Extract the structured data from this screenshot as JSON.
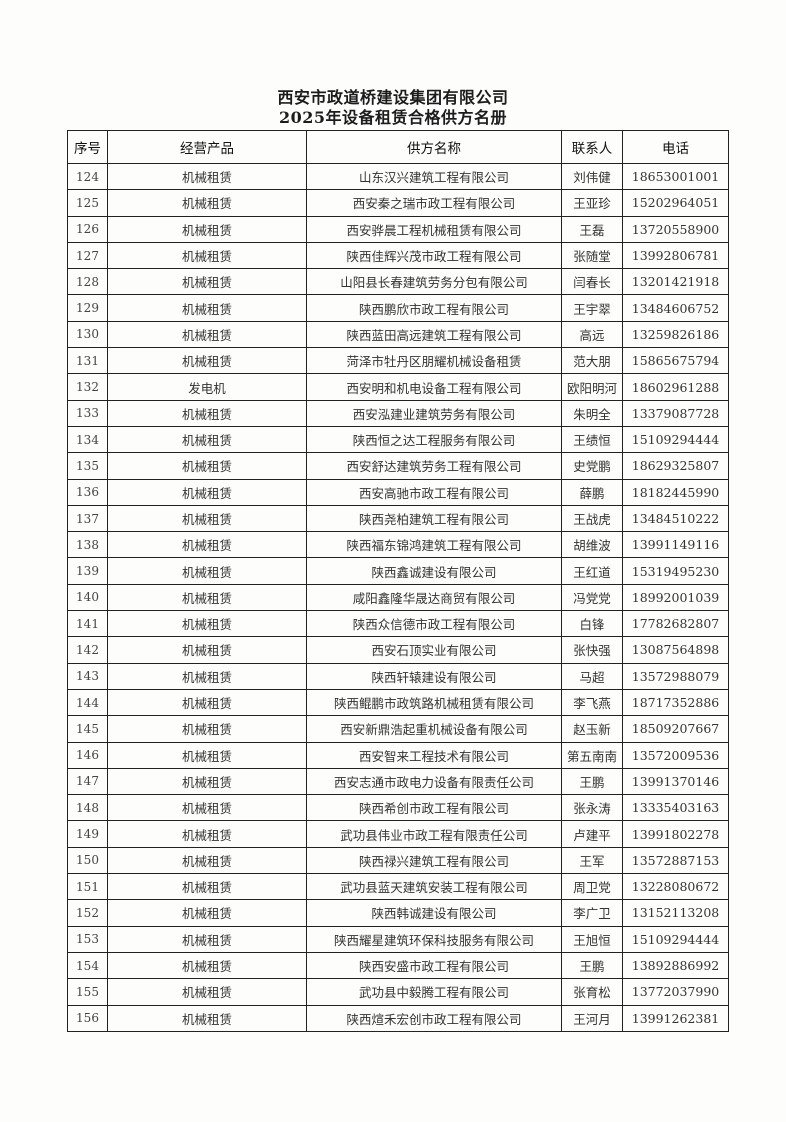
{
  "title_line1": "西安市政道桥建设集团有限公司",
  "title_line2": "2025年设备租赁合格供方名册",
  "columns": [
    "序号",
    "经营产品",
    "供方名称",
    "联系人",
    "电话"
  ],
  "rows": [
    [
      "124",
      "机械租赁",
      "山东汉兴建筑工程有限公司",
      "刘伟健",
      "18653001001"
    ],
    [
      "125",
      "机械租赁",
      "西安秦之瑞市政工程有限公司",
      "王亚珍",
      "15202964051"
    ],
    [
      "126",
      "机械租赁",
      "西安骅晨工程机械租赁有限公司",
      "王磊",
      "13720558900"
    ],
    [
      "127",
      "机械租赁",
      "陕西佳辉兴茂市政工程有限公司",
      "张随堂",
      "13992806781"
    ],
    [
      "128",
      "机械租赁",
      "山阳县长春建筑劳务分包有限公司",
      "闫春长",
      "13201421918"
    ],
    [
      "129",
      "机械租赁",
      "陕西鹏欣市政工程有限公司",
      "王宇翠",
      "13484606752"
    ],
    [
      "130",
      "机械租赁",
      "陕西蓝田高远建筑工程有限公司",
      "高远",
      "13259826186"
    ],
    [
      "131",
      "机械租赁",
      "菏泽市牡丹区朋耀机械设备租赁",
      "范大朋",
      "15865675794"
    ],
    [
      "132",
      "发电机",
      "西安明和机电设备工程有限公司",
      "欧阳明河",
      "18602961288"
    ],
    [
      "133",
      "机械租赁",
      "西安泓建业建筑劳务有限公司",
      "朱明全",
      "13379087728"
    ],
    [
      "134",
      "机械租赁",
      "陕西恒之达工程服务有限公司",
      "王绩恒",
      "15109294444"
    ],
    [
      "135",
      "机械租赁",
      "西安舒达建筑劳务工程有限公司",
      "史党鹏",
      "18629325807"
    ],
    [
      "136",
      "机械租赁",
      "西安高驰市政工程有限公司",
      "薛鹏",
      "18182445990"
    ],
    [
      "137",
      "机械租赁",
      "陕西尧柏建筑工程有限公司",
      "王战虎",
      "13484510222"
    ],
    [
      "138",
      "机械租赁",
      "陕西福东锦鸿建筑工程有限公司",
      "胡维波",
      "13991149116"
    ],
    [
      "139",
      "机械租赁",
      "陕西鑫诚建设有限公司",
      "王红道",
      "15319495230"
    ],
    [
      "140",
      "机械租赁",
      "咸阳鑫隆华晟达商贸有限公司",
      "冯党党",
      "18992001039"
    ],
    [
      "141",
      "机械租赁",
      "陕西众信德市政工程有限公司",
      "白锋",
      "17782682807"
    ],
    [
      "142",
      "机械租赁",
      "西安石顶实业有限公司",
      "张快强",
      "13087564898"
    ],
    [
      "143",
      "机械租赁",
      "陕西轩辕建设有限公司",
      "马超",
      "13572988079"
    ],
    [
      "144",
      "机械租赁",
      "陕西鲲鹏市政筑路机械租赁有限公司",
      "李飞燕",
      "18717352886"
    ],
    [
      "145",
      "机械租赁",
      "西安新鼎浩起重机械设备有限公司",
      "赵玉新",
      "18509207667"
    ],
    [
      "146",
      "机械租赁",
      "西安智来工程技术有限公司",
      "第五南南",
      "13572009536"
    ],
    [
      "147",
      "机械租赁",
      "西安志通市政电力设备有限责任公司",
      "王鹏",
      "13991370146"
    ],
    [
      "148",
      "机械租赁",
      "陕西希创市政工程有限公司",
      "张永涛",
      "13335403163"
    ],
    [
      "149",
      "机械租赁",
      "武功县伟业市政工程有限责任公司",
      "卢建平",
      "13991802278"
    ],
    [
      "150",
      "机械租赁",
      "陕西禄兴建筑工程有限公司",
      "王军",
      "13572887153"
    ],
    [
      "151",
      "机械租赁",
      "武功县蓝天建筑安装工程有限公司",
      "周卫党",
      "13228080672"
    ],
    [
      "152",
      "机械租赁",
      "陕西韩诚建设有限公司",
      "李广卫",
      "13152113208"
    ],
    [
      "153",
      "机械租赁",
      "陕西耀星建筑环保科技服务有限公司",
      "王旭恒",
      "15109294444"
    ],
    [
      "154",
      "机械租赁",
      "陕西安盛市政工程有限公司",
      "王鹏",
      "13892886992"
    ],
    [
      "155",
      "机械租赁",
      "武功县中毅腾工程有限公司",
      "张育松",
      "13772037990"
    ],
    [
      "156",
      "机械租赁",
      "陕西煊禾宏创市政工程有限公司",
      "王河月",
      "13991262381"
    ]
  ]
}
